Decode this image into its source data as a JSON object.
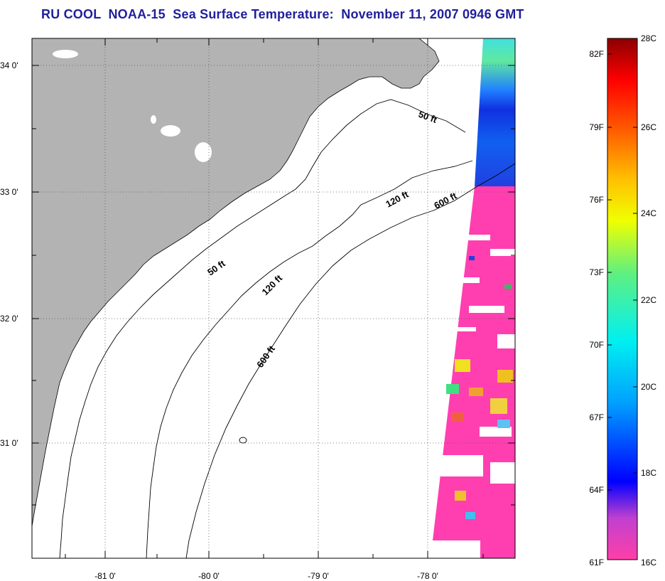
{
  "title": "RU COOL  NOAA-15  Sea Surface Temperature:  November 11, 2007 0946 GMT",
  "map": {
    "lat_ticks": [
      {
        "label": "34 0'",
        "value": 34
      },
      {
        "label": "33 0'",
        "value": 33
      },
      {
        "label": "32 0'",
        "value": 32
      },
      {
        "label": "31 0'",
        "value": 31
      }
    ],
    "lon_ticks": [
      {
        "label": "-81 0'",
        "value": -81
      },
      {
        "label": "-80 0'",
        "value": -80
      },
      {
        "label": "-79 0'",
        "value": -79
      },
      {
        "label": "-78 0'",
        "value": -78
      }
    ],
    "contour_labels": [
      {
        "id": "50ft-north",
        "text": "50 ft"
      },
      {
        "id": "120ft-north",
        "text": "120 ft"
      },
      {
        "id": "600ft-north",
        "text": "600 ft"
      },
      {
        "id": "50ft-mid",
        "text": "50 ft"
      },
      {
        "id": "120ft-mid",
        "text": "120 ft"
      },
      {
        "id": "600ft-mid",
        "text": "600 ft"
      }
    ],
    "colors": {
      "land": "#b3b3b3",
      "ocean": "#ffffff",
      "warm_pink": "#ff3fb0",
      "title_blue": "#1f1f9c"
    }
  },
  "colorbar": {
    "fahrenheit_labels": [
      "82F",
      "79F",
      "76F",
      "73F",
      "70F",
      "67F",
      "64F",
      "61F"
    ],
    "celsius_labels": [
      "28C",
      "26C",
      "24C",
      "22C",
      "20C",
      "18C",
      "16C"
    ],
    "min_c": 16,
    "max_c": 28
  }
}
